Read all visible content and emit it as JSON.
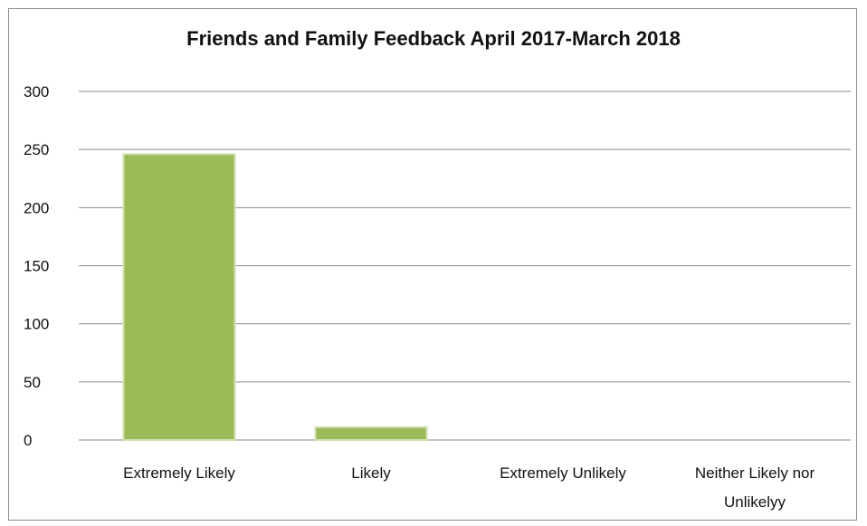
{
  "chart_data": {
    "type": "bar",
    "title": "Friends and Family Feedback April 2017-March 2018",
    "xlabel": "",
    "ylabel": "",
    "categories": [
      "Extremely Likely",
      "Likely",
      "Extremely Unlikely",
      "Neither Likely nor Unlikelyy"
    ],
    "category_lines": [
      [
        "Extremely Likely"
      ],
      [
        "Likely"
      ],
      [
        "Extremely Unlikely"
      ],
      [
        "Neither Likely nor",
        "Unlikelyy"
      ]
    ],
    "values": [
      246,
      11,
      0,
      0
    ],
    "ylim": [
      0,
      300
    ],
    "yticks": [
      0,
      50,
      100,
      150,
      200,
      250,
      300
    ],
    "grid": true,
    "legend": "none",
    "bar_color": "#9bbb59",
    "bar_edge_color": "#cfe0ae",
    "grid_color": "#8c8c8c"
  }
}
